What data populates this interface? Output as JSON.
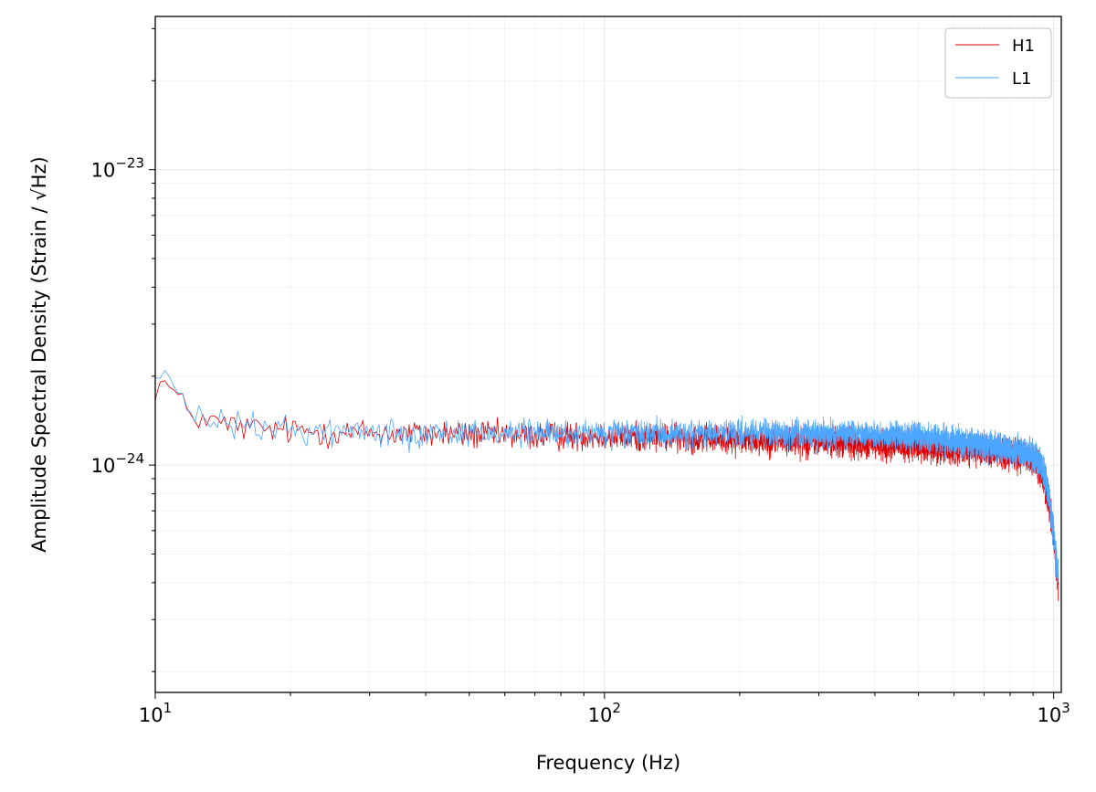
{
  "chart_data": {
    "type": "line",
    "xlabel": "Frequency (Hz)",
    "ylabel": "Amplitude Spectral Density (Strain / √Hz)",
    "x_scale": "log",
    "y_scale": "log",
    "xlim": [
      10,
      1040
    ],
    "ylim": [
      1.7e-25,
      3.3e-23
    ],
    "x_ticks": [
      {
        "value": 10,
        "base": "10",
        "exp": "1"
      },
      {
        "value": 100,
        "base": "10",
        "exp": "2"
      },
      {
        "value": 1000,
        "base": "10",
        "exp": "3"
      }
    ],
    "y_ticks": [
      {
        "value": 1e-24,
        "base": "10",
        "exp": "−24"
      },
      {
        "value": 1e-23,
        "base": "10",
        "exp": "−23"
      }
    ],
    "grid": true,
    "legend_position": "top-right",
    "series": [
      {
        "name": "H1",
        "color": "#e00000",
        "x": [
          10,
          10.5,
          11,
          11.5,
          12,
          12.5,
          13,
          14,
          15,
          16,
          17,
          18,
          20,
          22,
          24,
          26,
          28,
          30,
          35,
          40,
          45,
          50,
          55,
          60,
          70,
          80,
          90,
          100,
          120,
          140,
          160,
          180,
          200,
          250,
          300,
          350,
          400,
          450,
          500,
          550,
          600,
          650,
          700,
          750,
          800,
          850,
          900,
          920,
          940,
          960,
          980,
          1000,
          1010,
          1024
        ],
        "y": [
          1.85e-24,
          1.9e-24,
          1.75e-24,
          1.6e-24,
          1.5e-24,
          1.45e-24,
          1.42e-24,
          1.38e-24,
          1.36e-24,
          1.34e-24,
          1.33e-24,
          1.32e-24,
          1.31e-24,
          1.3e-24,
          1.3e-24,
          1.29e-24,
          1.29e-24,
          1.29e-24,
          1.28e-24,
          1.28e-24,
          1.28e-24,
          1.27e-24,
          1.27e-24,
          1.27e-24,
          1.26e-24,
          1.26e-24,
          1.26e-24,
          1.25e-24,
          1.25e-24,
          1.24e-24,
          1.24e-24,
          1.23e-24,
          1.22e-24,
          1.21e-24,
          1.2e-24,
          1.19e-24,
          1.18e-24,
          1.17e-24,
          1.16e-24,
          1.15e-24,
          1.14e-24,
          1.13e-24,
          1.12e-24,
          1.11e-24,
          1.1e-24,
          1.08e-24,
          1.05e-24,
          1.02e-24,
          9.5e-25,
          8.5e-25,
          7.2e-25,
          5.8e-25,
          4.8e-25,
          4e-25
        ]
      },
      {
        "name": "L1",
        "color": "#4da6ff",
        "x": [
          10,
          10.5,
          11,
          11.5,
          12,
          12.5,
          13,
          14,
          15,
          16,
          17,
          18,
          20,
          22,
          24,
          26,
          28,
          30,
          35,
          40,
          45,
          50,
          55,
          60,
          70,
          80,
          90,
          100,
          120,
          140,
          160,
          180,
          200,
          250,
          300,
          350,
          400,
          450,
          500,
          550,
          600,
          650,
          700,
          750,
          800,
          850,
          900,
          920,
          940,
          960,
          980,
          1000,
          1010,
          1024
        ],
        "y": [
          2e-24,
          2.05e-24,
          1.8e-24,
          1.6e-24,
          1.5e-24,
          1.45e-24,
          1.42e-24,
          1.39e-24,
          1.37e-24,
          1.35e-24,
          1.34e-24,
          1.33e-24,
          1.32e-24,
          1.31e-24,
          1.31e-24,
          1.3e-24,
          1.3e-24,
          1.3e-24,
          1.29e-24,
          1.29e-24,
          1.29e-24,
          1.29e-24,
          1.29e-24,
          1.29e-24,
          1.28e-24,
          1.28e-24,
          1.28e-24,
          1.28e-24,
          1.28e-24,
          1.28e-24,
          1.28e-24,
          1.28e-24,
          1.28e-24,
          1.28e-24,
          1.28e-24,
          1.28e-24,
          1.27e-24,
          1.26e-24,
          1.25e-24,
          1.23e-24,
          1.21e-24,
          1.19e-24,
          1.17e-24,
          1.15e-24,
          1.13e-24,
          1.11e-24,
          1.08e-24,
          1.05e-24,
          1e-24,
          9e-25,
          7.6e-25,
          6e-25,
          5e-25,
          4.2e-25
        ]
      }
    ]
  }
}
